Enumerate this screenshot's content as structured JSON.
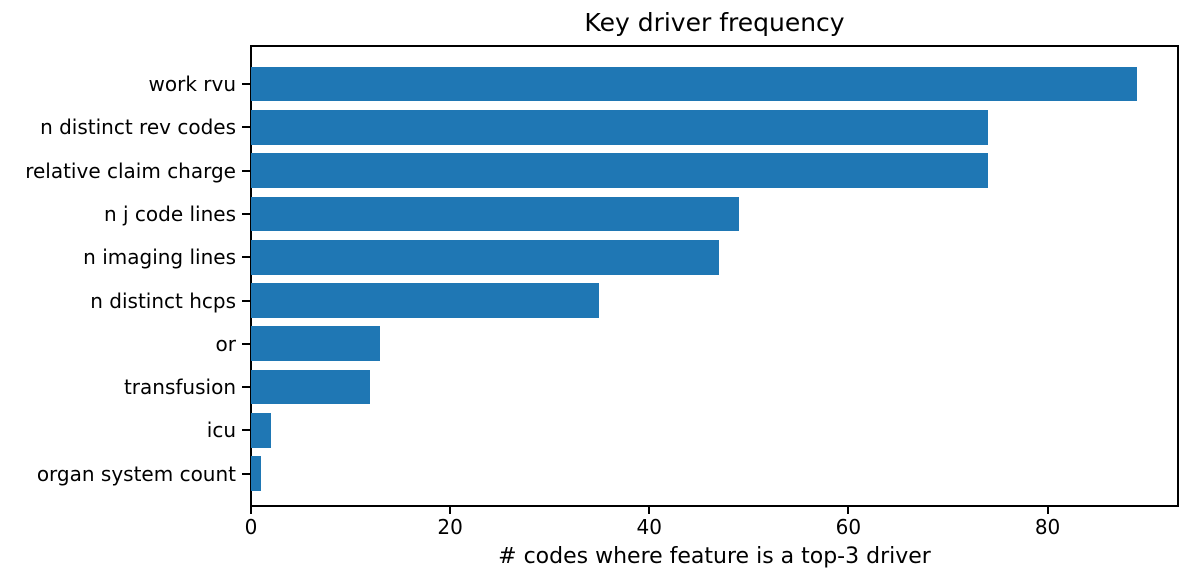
{
  "chart_data": {
    "type": "bar",
    "orientation": "horizontal",
    "title": "Key driver frequency",
    "xlabel": "# codes where feature is a top-3 driver",
    "ylabel": "",
    "categories": [
      "work rvu",
      "n distinct rev codes",
      "relative claim charge",
      "n j code lines",
      "n imaging lines",
      "n distinct hcps",
      "or",
      "transfusion",
      "icu",
      "organ system count"
    ],
    "values": [
      89,
      74,
      74,
      49,
      47,
      35,
      13,
      12,
      2,
      1
    ],
    "xticks": [
      0,
      20,
      40,
      60,
      80
    ],
    "xlim": [
      0,
      93
    ],
    "bar_color": "#1f77b4",
    "axis_color": "#000000",
    "text_color": "#000000",
    "grid": false,
    "legend": "none"
  }
}
